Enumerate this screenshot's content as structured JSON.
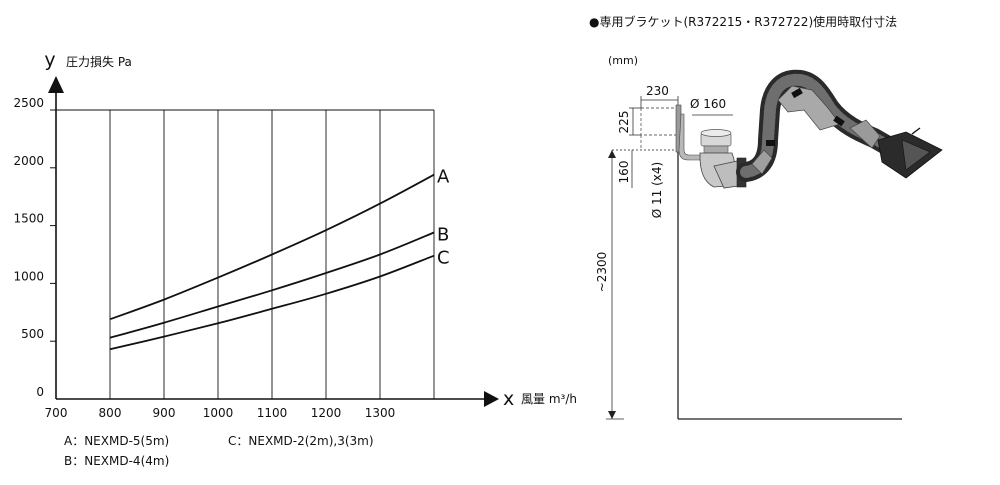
{
  "chart_data": {
    "type": "line",
    "y_axis": {
      "letter": "y",
      "label": "圧力損失 Pa",
      "ticks": [
        "0",
        "500",
        "1000",
        "1500",
        "2000",
        "2500"
      ],
      "ylim": [
        0,
        2500
      ]
    },
    "x_axis": {
      "letter": "x",
      "label": "風量 m³/h",
      "ticks": [
        "700",
        "800",
        "900",
        "1000",
        "1100",
        "1200",
        "1300"
      ],
      "xlim": [
        700,
        1400
      ]
    },
    "grid": "vertical",
    "series": [
      {
        "name": "A",
        "x": [
          800,
          900,
          1000,
          1100,
          1200,
          1300,
          1400
        ],
        "y": [
          690,
          860,
          1050,
          1250,
          1460,
          1690,
          1940
        ]
      },
      {
        "name": "B",
        "x": [
          800,
          900,
          1000,
          1100,
          1200,
          1300,
          1400
        ],
        "y": [
          530,
          660,
          800,
          940,
          1090,
          1250,
          1440
        ]
      },
      {
        "name": "C",
        "x": [
          800,
          900,
          1000,
          1100,
          1200,
          1300,
          1400
        ],
        "y": [
          430,
          540,
          655,
          780,
          910,
          1060,
          1240
        ]
      }
    ],
    "legend": [
      "A：NEXMD-5(5m)",
      "C：NEXMD-2(2m),3(3m)",
      "B：NEXMD-4(4m)"
    ]
  },
  "drawing": {
    "title": "●専用ブラケット(R372215・R372722)使用時取付寸法",
    "unit": "(mm)",
    "dims": [
      "230",
      "225",
      "Ø 160",
      "160",
      "Ø 11 (x4)",
      "~2300"
    ]
  }
}
